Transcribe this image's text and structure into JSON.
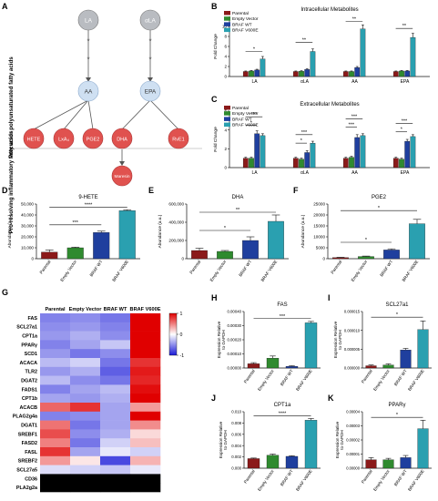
{
  "panel_letters": {
    "A": "A",
    "B": "B",
    "C": "C",
    "D": "D",
    "E": "E",
    "F": "F",
    "G": "G",
    "H": "H",
    "I": "I",
    "J": "J",
    "K": "K"
  },
  "pathway": {
    "side_label_top": "Precursor polyunsaturated fatty acids",
    "side_label_bottom": "Pro-resolving inflammatory fatty acids",
    "nodes": {
      "LA": "LA",
      "aLA": "αLA",
      "AA": "AA",
      "EPA": "EPA",
      "HETE": "HETE",
      "LxA4": "LxA₄",
      "PGE2": "PGE2",
      "DHA": "DHA",
      "RvE1": "RvE1",
      "Maresin": "Maresin"
    },
    "colors": {
      "precursor": "#b9bcc1",
      "intermediate": "#cfe0f2",
      "product": "#e0524f"
    }
  },
  "legend": {
    "items": [
      "Parental",
      "Empty Vector",
      "BRAF WT",
      "BRAF V600E"
    ],
    "colors": [
      "#8b1a1a",
      "#2f8a2f",
      "#1f3f9e",
      "#2aa0b0"
    ]
  },
  "chart_data": [
    {
      "type": "bar",
      "panel": "B",
      "title": "Intracellular Metabolites",
      "xlabel": "",
      "ylabel": "Fold Change",
      "categories": [
        "LA",
        "LA",
        "AA",
        "EPA"
      ],
      "category_prefix": [
        "",
        "α",
        "",
        ""
      ],
      "ylim": [
        0,
        12
      ],
      "ticks": [
        0,
        2,
        4,
        6,
        8,
        10
      ],
      "series": [
        {
          "name": "Parental",
          "values": [
            1,
            1,
            1,
            1
          ],
          "err": [
            0.1,
            0.1,
            0.1,
            0.1
          ]
        },
        {
          "name": "Empty Vector",
          "values": [
            1.1,
            1.05,
            1.0,
            1.1
          ],
          "err": [
            0.1,
            0.1,
            0.1,
            0.1
          ]
        },
        {
          "name": "BRAF WT",
          "values": [
            1.3,
            1.4,
            1.8,
            1.1
          ],
          "err": [
            0.15,
            0.15,
            0.2,
            0.1
          ]
        },
        {
          "name": "BRAF V600E",
          "values": [
            3.5,
            5.0,
            9.5,
            7.8
          ],
          "err": [
            0.5,
            0.5,
            0.8,
            0.8
          ]
        }
      ],
      "sig": [
        {
          "group": 0,
          "from": 0,
          "to": 3,
          "text": "*",
          "y": 5.0
        },
        {
          "group": 1,
          "from": 0,
          "to": 3,
          "text": "**",
          "y": 6.8
        },
        {
          "group": 2,
          "from": 0,
          "to": 3,
          "text": "**",
          "y": 11.0
        },
        {
          "group": 3,
          "from": 0,
          "to": 3,
          "text": "**",
          "y": 9.6
        }
      ]
    },
    {
      "type": "bar",
      "panel": "C",
      "title": "Extracellular Metabolites",
      "xlabel": "",
      "ylabel": "Fold Change",
      "categories": [
        "LA",
        "LA",
        "AA",
        "EPA"
      ],
      "category_prefix": [
        "",
        "α",
        "",
        ""
      ],
      "ylim": [
        0,
        6
      ],
      "ticks": [
        0,
        2,
        4,
        6
      ],
      "series": [
        {
          "name": "Parental",
          "values": [
            1,
            1,
            1,
            1
          ],
          "err": [
            0.1,
            0.1,
            0.1,
            0.1
          ]
        },
        {
          "name": "Empty Vector",
          "values": [
            1.0,
            0.9,
            1.1,
            0.9
          ],
          "err": [
            0.1,
            0.1,
            0.1,
            0.1
          ]
        },
        {
          "name": "BRAF WT",
          "values": [
            3.6,
            1.6,
            3.2,
            2.8
          ],
          "err": [
            0.3,
            0.2,
            0.3,
            0.2
          ]
        },
        {
          "name": "BRAF V600E",
          "values": [
            3.4,
            2.6,
            3.4,
            3.3
          ],
          "err": [
            0.2,
            0.2,
            0.2,
            0.2
          ]
        }
      ],
      "sig": [
        {
          "group": 0,
          "from": 0,
          "to": 2,
          "text": "*",
          "y": 4.5
        },
        {
          "group": 0,
          "from": 0,
          "to": 3,
          "text": "***",
          "y": 5.4
        },
        {
          "group": 1,
          "from": 0,
          "to": 2,
          "text": "*",
          "y": 2.6
        },
        {
          "group": 1,
          "from": 0,
          "to": 3,
          "text": "***",
          "y": 3.5
        },
        {
          "group": 2,
          "from": 0,
          "to": 2,
          "text": "***",
          "y": 4.3
        },
        {
          "group": 2,
          "from": 0,
          "to": 3,
          "text": "***",
          "y": 5.2
        },
        {
          "group": 3,
          "from": 0,
          "to": 2,
          "text": "*",
          "y": 3.8
        },
        {
          "group": 3,
          "from": 0,
          "to": 3,
          "text": "***",
          "y": 4.7
        }
      ]
    },
    {
      "type": "bar",
      "panel": "D",
      "title": "9-HETE",
      "xlabel": "",
      "ylabel": "Abundance (a.u.)",
      "categories": [
        "Parental",
        "Empty Vector",
        "BRAF WT",
        "BRAF V600E"
      ],
      "values": [
        6000,
        10000,
        24000,
        44000
      ],
      "err": [
        2000,
        600,
        1200,
        800
      ],
      "ylim": [
        0,
        50000
      ],
      "ticks": [
        0,
        10000,
        20000,
        30000,
        40000,
        50000
      ],
      "tick_labels": [
        "0",
        "10,000",
        "20,000",
        "30,000",
        "40,000",
        "50,000"
      ],
      "sig": [
        {
          "from": 0,
          "to": 2,
          "text": "***",
          "y": 31000
        },
        {
          "from": 0,
          "to": 3,
          "text": "****",
          "y": 47000
        }
      ]
    },
    {
      "type": "bar",
      "panel": "E",
      "title": "DHA",
      "xlabel": "",
      "ylabel": "Abundance (a.u.)",
      "categories": [
        "Parental",
        "Empty Vector",
        "BRAF WT",
        "BRAF V600E"
      ],
      "values": [
        90000,
        80000,
        200000,
        410000
      ],
      "err": [
        25000,
        10000,
        40000,
        70000
      ],
      "ylim": [
        0,
        600000
      ],
      "ticks": [
        0,
        200000,
        400000,
        600000
      ],
      "tick_labels": [
        "0",
        "200,000",
        "400,000",
        "600,000"
      ],
      "sig": [
        {
          "from": 0,
          "to": 2,
          "text": "*",
          "y": 310000
        },
        {
          "from": 0,
          "to": 3,
          "text": "**",
          "y": 510000
        }
      ]
    },
    {
      "type": "bar",
      "panel": "F",
      "title": "PGE2",
      "xlabel": "",
      "ylabel": "Abundance (a.u.)",
      "categories": [
        "Parental",
        "Empty Vector",
        "BRAF WT",
        "BRAF V600E"
      ],
      "values": [
        500,
        1000,
        4000,
        16000
      ],
      "err": [
        150,
        200,
        500,
        2000
      ],
      "ylim": [
        0,
        25000
      ],
      "ticks": [
        0,
        5000,
        10000,
        15000,
        20000,
        25000
      ],
      "tick_labels": [
        "0",
        "5000",
        "10000",
        "15000",
        "20000",
        "25000"
      ],
      "sig": [
        {
          "from": 0,
          "to": 2,
          "text": "*",
          "y": 7500
        },
        {
          "from": 0,
          "to": 3,
          "text": "*",
          "y": 22000
        }
      ]
    },
    {
      "type": "heatmap",
      "panel": "G",
      "columns": [
        "Parental",
        "Empty Vector",
        "BRAF WT",
        "BRAF V600E"
      ],
      "rows": [
        "FAS",
        "SCL27a1",
        "CPT1a",
        "PPARγ",
        "SCD1",
        "ACACA",
        "TLR2",
        "DGAT2",
        "FADS1",
        "CPT1b",
        "ACACB",
        "PLAG2g4a",
        "DGAT1",
        "SREBF1",
        "FASD2",
        "FASL",
        "SREBF2",
        "SCL27a5",
        "CD36",
        "PLA2g2a"
      ],
      "values": [
        [
          -0.55,
          -0.5,
          -0.6,
          1.0
        ],
        [
          -0.5,
          -0.45,
          -0.55,
          1.0
        ],
        [
          -0.45,
          -0.35,
          -0.5,
          1.0
        ],
        [
          -0.55,
          -0.4,
          -0.25,
          1.0
        ],
        [
          -0.45,
          -0.6,
          -0.5,
          1.0
        ],
        [
          -0.3,
          -0.2,
          -0.6,
          0.8
        ],
        [
          -0.45,
          -0.35,
          -0.7,
          0.9
        ],
        [
          -0.3,
          -0.5,
          -0.6,
          0.85
        ],
        [
          -0.55,
          -0.4,
          -0.3,
          0.95
        ],
        [
          -0.4,
          -0.45,
          -0.35,
          1.0
        ],
        [
          0.6,
          0.8,
          -0.4,
          0.4
        ],
        [
          -0.55,
          -0.5,
          -0.4,
          1.0
        ],
        [
          0.55,
          -0.6,
          -0.4,
          0.45
        ],
        [
          0.7,
          -0.5,
          -0.35,
          0.15
        ],
        [
          0.5,
          -0.6,
          -0.2,
          0.25
        ],
        [
          0.8,
          -0.4,
          -0.1,
          -0.2
        ],
        [
          0.4,
          0.1,
          -0.8,
          0.3
        ],
        [
          -0.15,
          -0.2,
          -0.25,
          -0.1
        ],
        [
          null,
          null,
          null,
          null
        ],
        [
          null,
          null,
          null,
          null
        ]
      ],
      "scale_ticks": [
        "1",
        "0",
        "-1"
      ],
      "colors": {
        "low": "#1b1bd8",
        "mid": "#ffffff",
        "high": "#e00000",
        "missing": "#000000"
      }
    },
    {
      "type": "bar",
      "panel": "H",
      "title": "FAS",
      "xlabel": "",
      "ylabel": "Expression Relative to GAPDH",
      "categories": [
        "Parental",
        "Empty Vector",
        "BRAF WT",
        "BRAF V600E"
      ],
      "values": [
        3e-05,
        7e-05,
        1.2e-05,
        0.00032
      ],
      "err": [
        8e-06,
        1.5e-05,
        4e-06,
        1e-05
      ],
      "ylim": [
        0,
        0.0004
      ],
      "ticks": [
        0,
        0.0001,
        0.0002,
        0.0003,
        0.0004
      ],
      "tick_labels": [
        "0.00000",
        "0.00010",
        "0.00020",
        "0.00030",
        "0.00040"
      ],
      "sig": [
        {
          "from": 0,
          "to": 3,
          "text": "***",
          "y": 0.00035
        }
      ]
    },
    {
      "type": "bar",
      "panel": "I",
      "title": "SCL27a1",
      "xlabel": "",
      "ylabel": "Expression Relative to GAPDH",
      "categories": [
        "Parental",
        "Empty Vector",
        "BRAF WT",
        "BRAF V600E"
      ],
      "values": [
        6e-07,
        8e-07,
        4.8e-06,
        1.02e-05
      ],
      "err": [
        2e-07,
        3e-07,
        4e-07,
        2.3e-06
      ],
      "ylim": [
        0,
        1.5e-05
      ],
      "ticks": [
        0,
        5e-06,
        1e-05,
        1.5e-05
      ],
      "tick_labels": [
        "0.000000",
        "0.000005",
        "0.000010",
        "0.000015"
      ],
      "sig": [
        {
          "from": 0,
          "to": 3,
          "text": "*",
          "y": 1.35e-05
        }
      ]
    },
    {
      "type": "bar",
      "panel": "J",
      "title": "CPT1a",
      "xlabel": "",
      "ylabel": "Expression Relative to GAPDH",
      "categories": [
        "Parental",
        "Empty Vector",
        "BRAF WT",
        "BRAF V600E"
      ],
      "values": [
        0.0017,
        0.0023,
        0.0021,
        0.0085
      ],
      "err": [
        0.0001,
        0.0002,
        0.0001,
        0.0003
      ],
      "ylim": [
        0,
        0.01
      ],
      "ticks": [
        0,
        0.002,
        0.004,
        0.006,
        0.008,
        0.01
      ],
      "tick_labels": [
        "0.000",
        "0.002",
        "0.004",
        "0.006",
        "0.008",
        "0.010"
      ],
      "sig": [
        {
          "from": 0,
          "to": 3,
          "text": "****",
          "y": 0.0093
        }
      ]
    },
    {
      "type": "bar",
      "panel": "K",
      "title": "PPARγ",
      "xlabel": "",
      "ylabel": "Expression Relative to GAPDH",
      "categories": [
        "Parental",
        "Empty Vector",
        "BRAF WT",
        "BRAF V600E"
      ],
      "values": [
        6e-06,
        6e-06,
        7.5e-06,
        2.8e-05
      ],
      "err": [
        1.5e-06,
        1e-06,
        1.5e-06,
        6e-06
      ],
      "ylim": [
        0,
        4e-05
      ],
      "ticks": [
        0,
        1e-05,
        2e-05,
        3e-05,
        4e-05
      ],
      "tick_labels": [
        "0.00000",
        "0.00001",
        "0.00002",
        "0.00003",
        "0.00004"
      ],
      "sig": [
        {
          "from": 0,
          "to": 3,
          "text": "*",
          "y": 3.6e-05
        }
      ]
    }
  ]
}
